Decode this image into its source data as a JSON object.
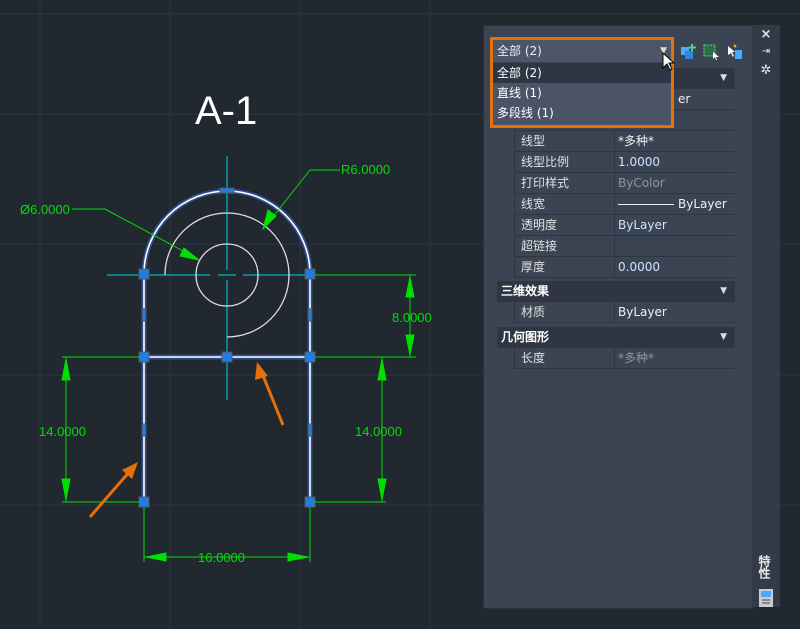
{
  "drawing": {
    "title": "A-1",
    "dims": {
      "diameter": "Ø6.0000",
      "radius": "R6.0000",
      "height_upper": "8.0000",
      "height_left": "14.0000",
      "height_right": "14.0000",
      "width": "16.0000"
    },
    "colors": {
      "dimension": "#00e000",
      "centerline": "#00d8e0",
      "selected": "#ffffff",
      "grip": "#1e7ee6",
      "arrow_annotation": "#e8700a",
      "highlight_box": "#e8700a"
    }
  },
  "properties_panel": {
    "filter_combo": {
      "value": "全部 (2)",
      "options": [
        "全部 (2)",
        "直线 (1)",
        "多段线 (1)"
      ]
    },
    "toolbar_icons": [
      "quick-select-icon",
      "select-objects-icon",
      "pickadd-toggle-icon"
    ],
    "hidden_partial": "er",
    "general_rows": [
      {
        "label": "线型",
        "value": "*多种*"
      },
      {
        "label": "线型比例",
        "value": "1.0000"
      },
      {
        "label": "打印样式",
        "value": "ByColor"
      },
      {
        "label": "线宽",
        "value": "ByLayer"
      },
      {
        "label": "透明度",
        "value": "ByLayer"
      },
      {
        "label": "超链接",
        "value": ""
      },
      {
        "label": "厚度",
        "value": "0.0000"
      }
    ],
    "sections": [
      {
        "title": "三维效果",
        "rows": [
          {
            "label": "材质",
            "value": "ByLayer"
          }
        ]
      },
      {
        "title": "几何图形",
        "rows": [
          {
            "label": "长度",
            "value": "*多种*"
          }
        ]
      }
    ],
    "side_strip": {
      "close": "×",
      "title": "特性"
    }
  }
}
